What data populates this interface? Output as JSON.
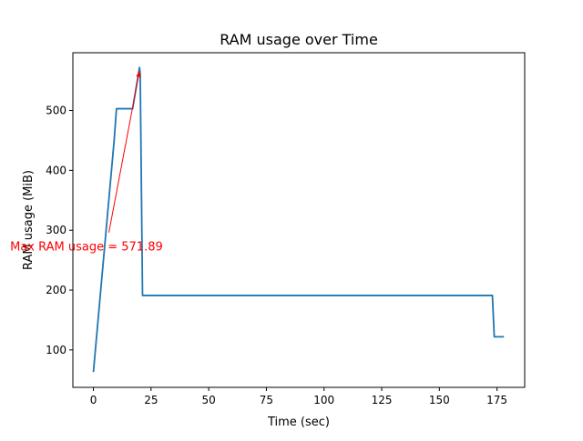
{
  "chart_data": {
    "type": "line",
    "title": "RAM usage over Time",
    "xlabel": "Time (sec)",
    "ylabel": "RAM usage (MiB)",
    "xlim": [
      -8.9,
      187.0
    ],
    "ylim": [
      37.5,
      596.5
    ],
    "xticks": [
      0,
      25,
      50,
      75,
      100,
      125,
      150,
      175
    ],
    "xtick_labels": [
      "0",
      "25",
      "50",
      "75",
      "100",
      "125",
      "150",
      "175"
    ],
    "yticks": [
      100,
      200,
      300,
      400,
      500
    ],
    "ytick_labels": [
      "100",
      "200",
      "300",
      "400",
      "500"
    ],
    "grid": false,
    "series": [
      {
        "color": "#1f77b4",
        "x": [
          0,
          9,
          10,
          17,
          20,
          20.3,
          21.3,
          173,
          173.8,
          178
        ],
        "y": [
          63,
          450,
          503,
          503,
          572,
          560,
          191,
          191,
          122,
          122
        ]
      }
    ],
    "annotation": {
      "text": "Max RAM usage = 571.89",
      "color": "#ff0000",
      "arrow_from": [
        6.7,
        296
      ],
      "arrow_to": [
        20,
        566
      ],
      "text_anchor_at": [
        -3,
        274
      ]
    }
  }
}
